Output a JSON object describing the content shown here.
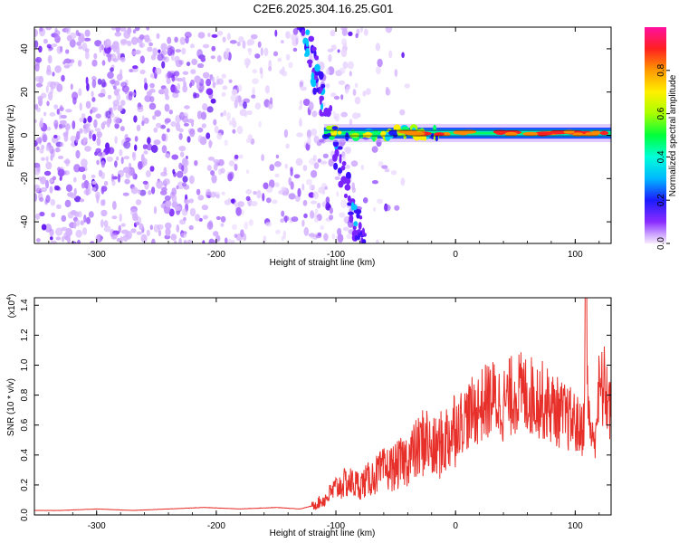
{
  "title": "C2E6.2025.304.16.25.G01",
  "colors": {
    "snr_line": "#e8302a",
    "spectrogram_base": "#6a00ff",
    "ridge": "#ff2020"
  },
  "chart_data": [
    {
      "type": "heatmap",
      "xlabel": "Height of straight line (km)",
      "ylabel": "Frequency (Hz)",
      "xlim": [
        -352,
        130
      ],
      "ylim": [
        -50,
        50
      ],
      "xticks": [
        -300,
        -200,
        -100,
        0,
        100
      ],
      "yticks": [
        -40,
        -20,
        0,
        20,
        40
      ],
      "ridge": {
        "y": 1,
        "x_start": -110,
        "x_end": 130,
        "peak_amplitude": 1.0
      },
      "colorbar": {
        "label": "Normalized spectral amplitude",
        "range": [
          0,
          1
        ],
        "ticks": [
          "0.0",
          "0.2",
          "0.4",
          "0.6",
          "0.8"
        ],
        "tick_values": [
          0.0,
          0.2,
          0.4,
          0.6,
          0.8
        ]
      }
    },
    {
      "type": "line",
      "xlabel": "Height of straight line (km)",
      "ylabel": "SNR (10 * v/v)",
      "multiplier_label": "(x10",
      "multiplier_exp": "4",
      "xlim": [
        -352,
        130
      ],
      "ylim": [
        0,
        1.45
      ],
      "xticks": [
        -300,
        -200,
        -100,
        0,
        100
      ],
      "yticks": [
        "0.0",
        "0.2",
        "0.4",
        "0.6",
        "0.8",
        "1.0",
        "1.2",
        "1.4"
      ],
      "ytick_values": [
        0.0,
        0.2,
        0.4,
        0.6,
        0.8,
        1.0,
        1.2,
        1.4
      ],
      "series": [
        {
          "name": "SNR",
          "x": [
            -352,
            -330,
            -300,
            -270,
            -240,
            -210,
            -180,
            -150,
            -130,
            -120,
            -110,
            -100,
            -90,
            -80,
            -70,
            -60,
            -50,
            -40,
            -30,
            -25,
            -20,
            -10,
            0,
            10,
            20,
            30,
            40,
            50,
            60,
            70,
            80,
            90,
            100,
            105,
            110,
            115,
            120,
            125,
            130
          ],
          "values": [
            0.03,
            0.03,
            0.04,
            0.03,
            0.04,
            0.05,
            0.04,
            0.05,
            0.04,
            0.06,
            0.1,
            0.18,
            0.22,
            0.2,
            0.25,
            0.3,
            0.32,
            0.38,
            0.45,
            0.52,
            0.42,
            0.48,
            0.6,
            0.66,
            0.72,
            0.78,
            0.74,
            0.82,
            0.8,
            0.78,
            0.72,
            0.66,
            0.62,
            0.55,
            0.8,
            0.45,
            0.82,
            0.85,
            0.68
          ]
        }
      ]
    }
  ]
}
